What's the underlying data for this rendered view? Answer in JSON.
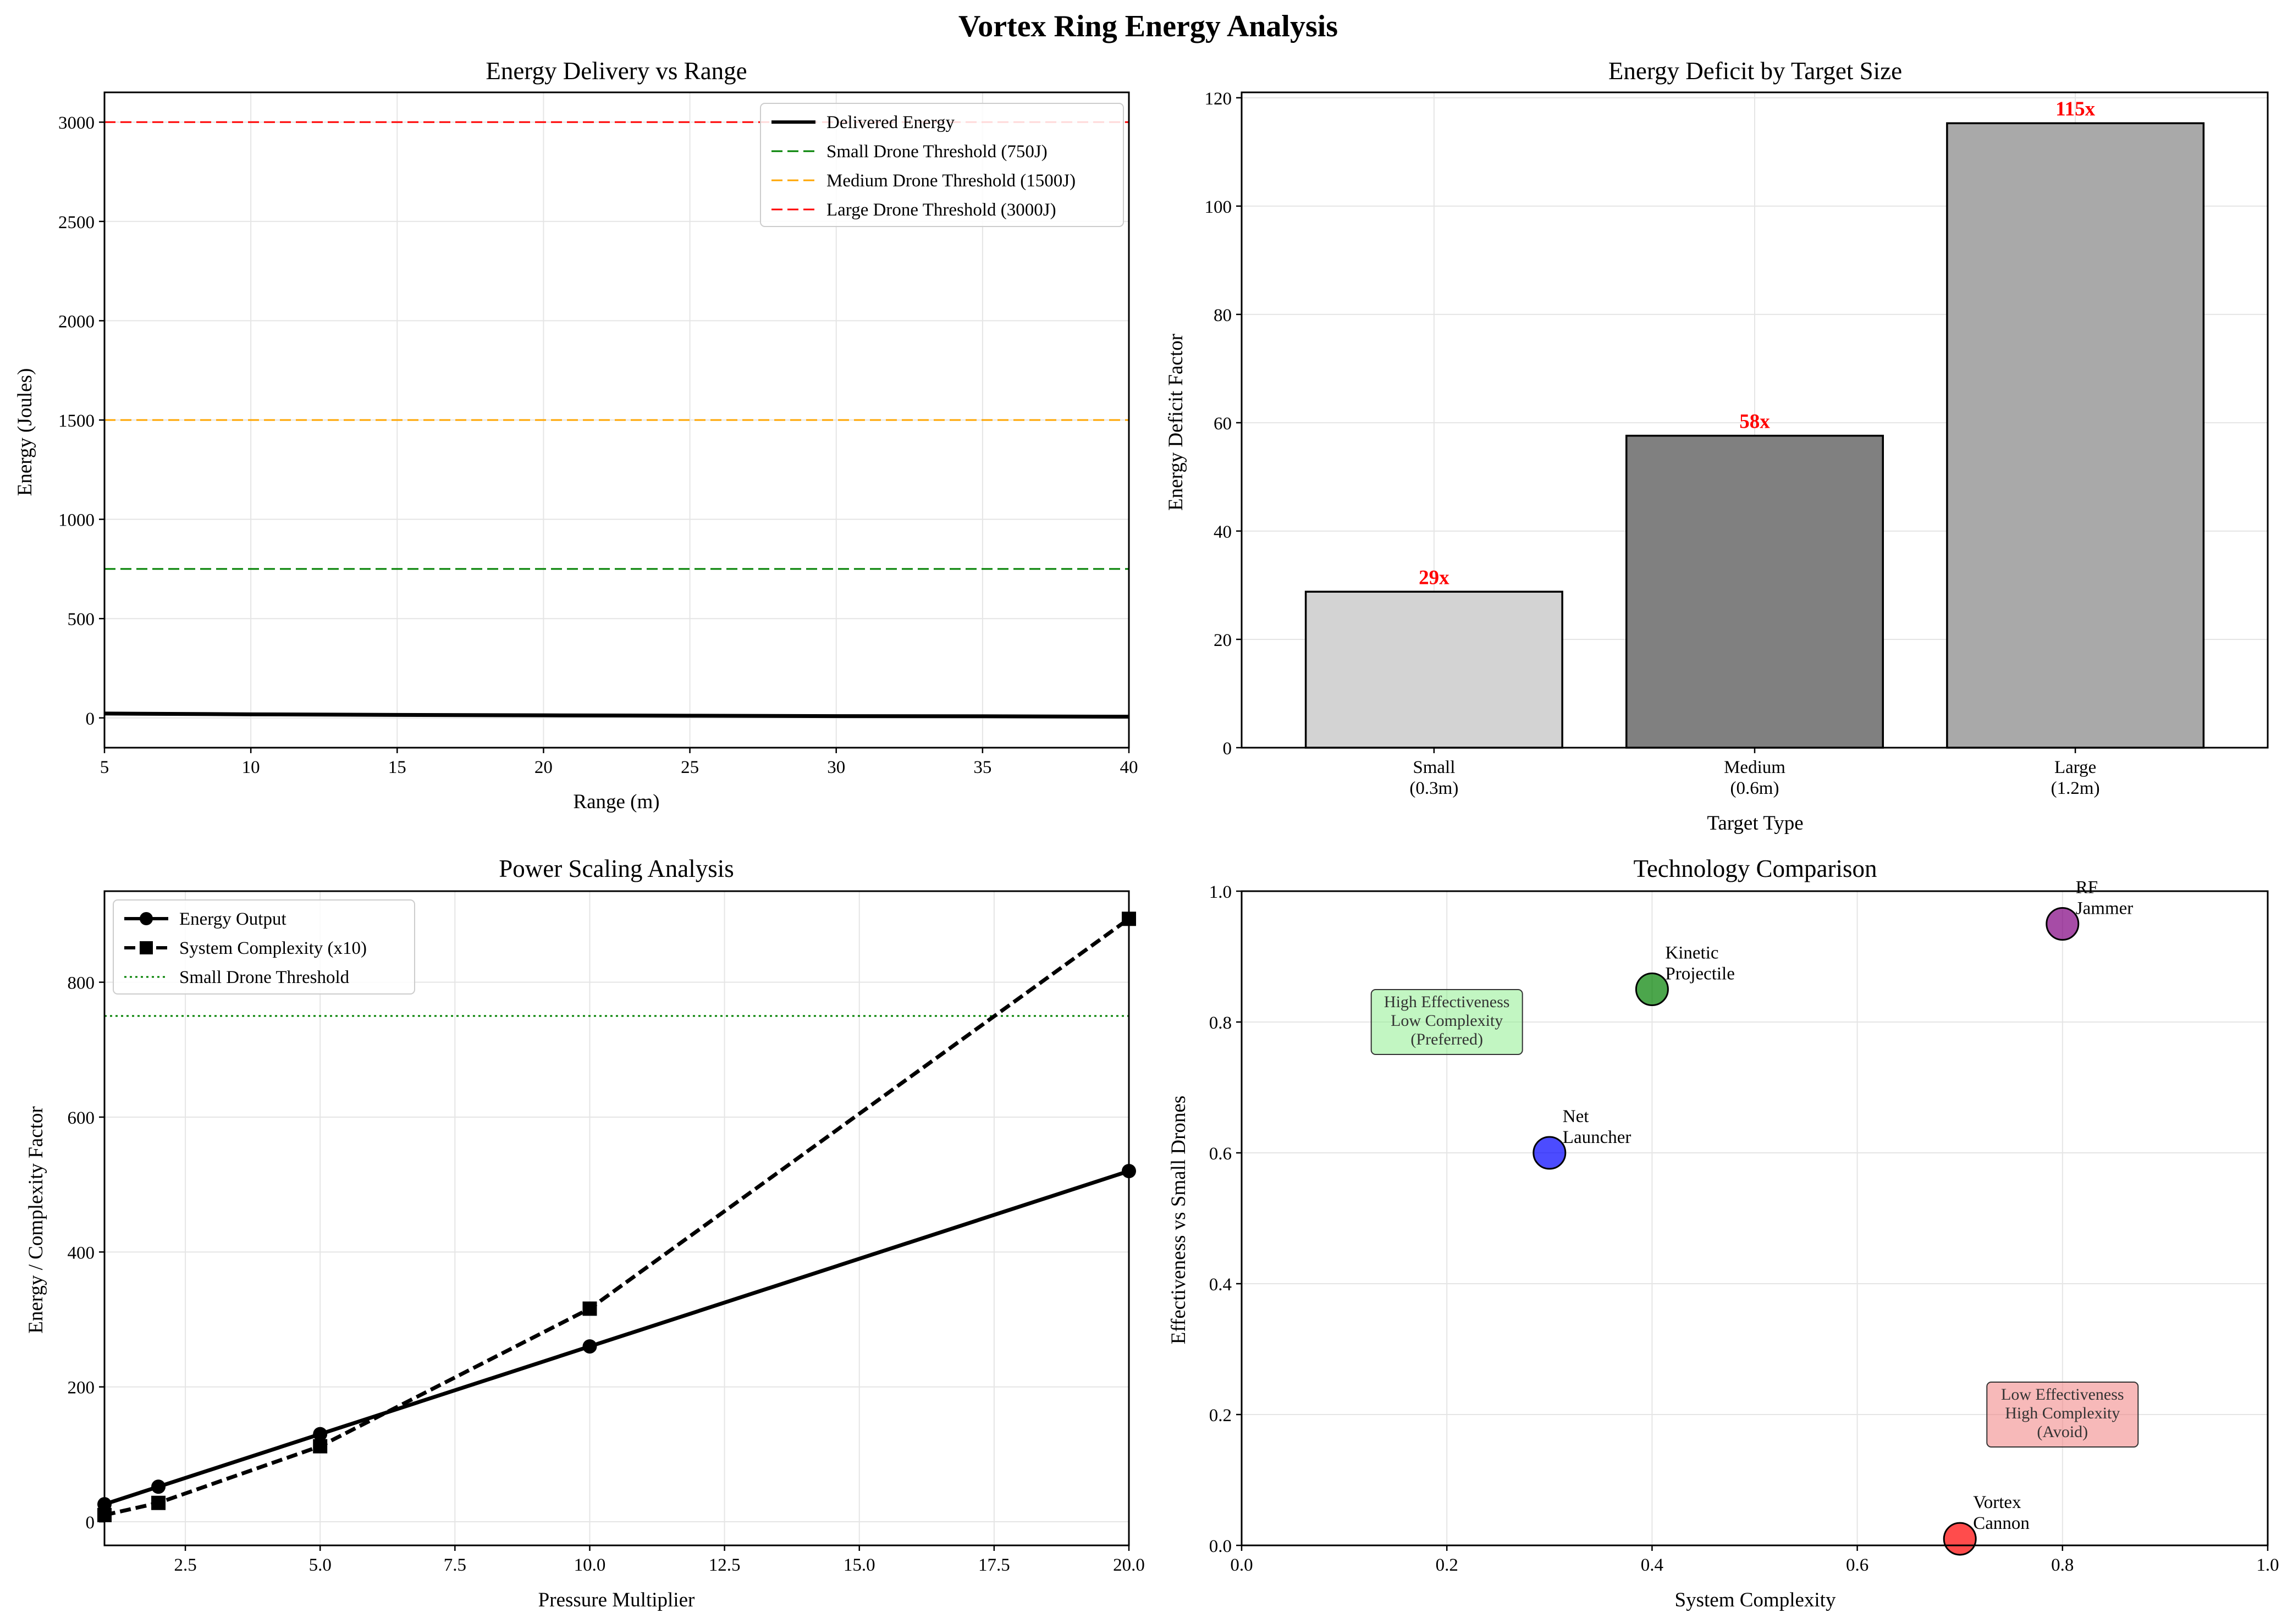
{
  "suptitle": "Vortex Ring Energy Analysis",
  "chart_data": [
    {
      "type": "line",
      "title": "Energy Delivery vs Range",
      "xlabel": "Range (m)",
      "ylabel": "Energy (Joules)",
      "xlim": [
        5,
        40
      ],
      "ylim": [
        -150,
        3150
      ],
      "xticks": [
        "5",
        "10",
        "15",
        "20",
        "25",
        "30",
        "35",
        "40"
      ],
      "yticks": [
        "0",
        "500",
        "1000",
        "1500",
        "2000",
        "2500",
        "3000"
      ],
      "grid": true,
      "legend": "top-right",
      "series": [
        {
          "name": "Delivered Energy",
          "style": "solid",
          "color": "#000000",
          "x": [
            5,
            10,
            15,
            20,
            25,
            30,
            35,
            40
          ],
          "y": [
            22,
            18,
            15,
            13,
            11,
            9,
            8,
            6
          ]
        }
      ],
      "hlines": [
        {
          "name": "Small Drone Threshold (750J)",
          "y": 750,
          "color": "#008000",
          "style": "dashed"
        },
        {
          "name": "Medium Drone Threshold (1500J)",
          "y": 1500,
          "color": "#ffa500",
          "style": "dashed"
        },
        {
          "name": "Large Drone Threshold (3000J)",
          "y": 3000,
          "color": "#ff0000",
          "style": "dashed"
        }
      ]
    },
    {
      "type": "bar",
      "title": "Energy Deficit by Target Size",
      "xlabel": "Target Type",
      "ylabel": "Energy Deficit Factor",
      "ylim": [
        0,
        121
      ],
      "yticks": [
        "0",
        "20",
        "40",
        "60",
        "80",
        "100",
        "120"
      ],
      "grid": true,
      "categories": [
        [
          "Small",
          "(0.3m)"
        ],
        [
          "Medium",
          "(0.6m)"
        ],
        [
          "Large",
          "(1.2m)"
        ]
      ],
      "values": [
        28.8,
        57.6,
        115.3
      ],
      "labels": [
        "29x",
        "58x",
        "115x"
      ],
      "colors": [
        "#d3d3d3",
        "#808080",
        "#a9a9a9"
      ],
      "label_color": "#ff0000"
    },
    {
      "type": "line",
      "title": "Power Scaling Analysis",
      "xlabel": "Pressure Multiplier",
      "ylabel": "Energy / Complexity Factor",
      "xlim": [
        1,
        20
      ],
      "ylim": [
        -35,
        935
      ],
      "xticks": [
        "2.5",
        "5.0",
        "7.5",
        "10.0",
        "12.5",
        "15.0",
        "17.5",
        "20.0"
      ],
      "yticks": [
        "0",
        "200",
        "400",
        "600",
        "800"
      ],
      "grid": true,
      "legend": "top-left",
      "series": [
        {
          "name": "Energy Output",
          "style": "solid",
          "marker": "circle",
          "color": "#000000",
          "x": [
            1,
            2,
            5,
            10,
            20
          ],
          "y": [
            26,
            52,
            130,
            260,
            520
          ]
        },
        {
          "name": "System Complexity (x10)",
          "style": "dashed",
          "marker": "square",
          "color": "#000000",
          "x": [
            1,
            2,
            5,
            10,
            20
          ],
          "y": [
            10,
            28,
            112,
            316,
            894
          ]
        }
      ],
      "hlines": [
        {
          "name": "Small Drone Threshold",
          "y": 750,
          "color": "#008000",
          "style": "dotted"
        }
      ]
    },
    {
      "type": "scatter",
      "title": "Technology Comparison",
      "xlabel": "System Complexity",
      "ylabel": "Effectiveness vs Small Drones",
      "xlim": [
        0,
        1
      ],
      "ylim": [
        0,
        1
      ],
      "xticks": [
        "0.0",
        "0.2",
        "0.4",
        "0.6",
        "0.8",
        "1.0"
      ],
      "yticks": [
        "0.0",
        "0.2",
        "0.4",
        "0.6",
        "0.8",
        "1.0"
      ],
      "grid": true,
      "points": [
        {
          "label": [
            "Vortex",
            "Cannon"
          ],
          "x": 0.7,
          "y": 0.01,
          "color": "#ff0000"
        },
        {
          "label": [
            "Net",
            "Launcher"
          ],
          "x": 0.3,
          "y": 0.6,
          "color": "#0000ff"
        },
        {
          "label": [
            "Kinetic",
            "Projectile"
          ],
          "x": 0.4,
          "y": 0.85,
          "color": "#008000"
        },
        {
          "label": [
            "RF",
            "Jammer"
          ],
          "x": 0.8,
          "y": 0.95,
          "color": "#800080"
        }
      ],
      "annotations": [
        {
          "lines": [
            "High Effectiveness",
            "Low Complexity",
            "(Preferred)"
          ],
          "x": 0.2,
          "y": 0.8,
          "color": "#90ee90"
        },
        {
          "lines": [
            "Low Effectiveness",
            "High Complexity",
            "(Avoid)"
          ],
          "x": 0.8,
          "y": 0.2,
          "color": "#f08080"
        }
      ]
    }
  ]
}
